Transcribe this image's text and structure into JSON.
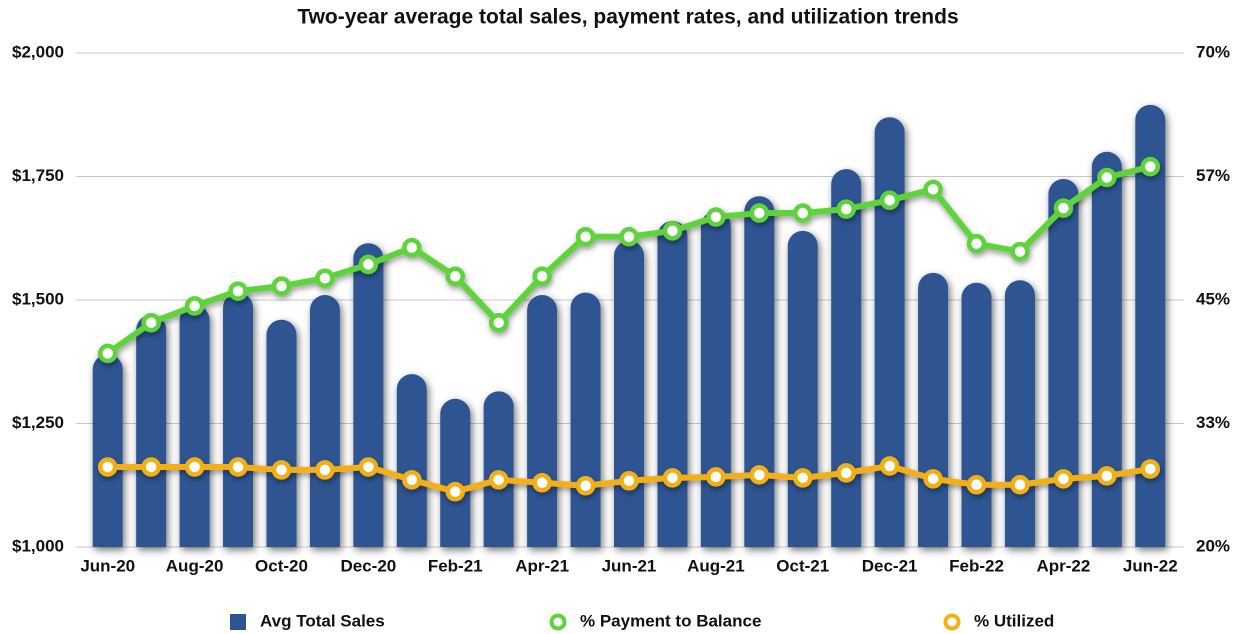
{
  "chart_data": {
    "type": "bar-line",
    "title": "Two-year average total sales, payment rates, and utilization trends",
    "categories": [
      "Jun-20",
      null,
      "Aug-20",
      null,
      "Oct-20",
      null,
      "Dec-20",
      null,
      "Feb-21",
      null,
      "Apr-21",
      null,
      "Jun-21",
      null,
      "Aug-21",
      null,
      "Oct-21",
      null,
      "Dec-21",
      null,
      "Feb-22",
      null,
      "Apr-22",
      null,
      "Jun-22"
    ],
    "series": [
      {
        "name": "Avg Total Sales",
        "type": "bar",
        "color": "#2e5592",
        "axis": "y",
        "values": [
          1390,
          1470,
          1490,
          1515,
          1460,
          1510,
          1615,
          1350,
          1300,
          1315,
          1510,
          1515,
          1620,
          1660,
          1680,
          1710,
          1640,
          1765,
          1870,
          1555,
          1535,
          1540,
          1745,
          1800,
          1895
        ]
      },
      {
        "name": "% Payment to Balance",
        "type": "line",
        "color": "#5fd33a",
        "axis": "y2",
        "values": [
          39.6,
          42.7,
          44.4,
          45.9,
          46.4,
          47.2,
          48.6,
          50.3,
          47.4,
          42.7,
          47.4,
          51.4,
          51.4,
          52.0,
          53.4,
          53.8,
          53.8,
          54.2,
          55.1,
          56.2,
          50.7,
          49.9,
          54.3,
          57.4,
          58.5
        ]
      },
      {
        "name": "% Utilized",
        "type": "line",
        "color": "#f2b019",
        "axis": "y2",
        "values": [
          28.1,
          28.1,
          28.1,
          28.1,
          27.8,
          27.8,
          28.1,
          26.8,
          25.6,
          26.8,
          26.5,
          26.2,
          26.7,
          27.0,
          27.1,
          27.3,
          27.0,
          27.5,
          28.2,
          26.9,
          26.3,
          26.3,
          26.9,
          27.2,
          27.9
        ]
      }
    ],
    "ylim": [
      1000,
      2000
    ],
    "yticks": [
      {
        "value": 1000,
        "label": "$1,000"
      },
      {
        "value": 1250,
        "label": "$1,250"
      },
      {
        "value": 1500,
        "label": "$1,500"
      },
      {
        "value": 1750,
        "label": "$1,750"
      },
      {
        "value": 2000,
        "label": "$2,000"
      }
    ],
    "y2lim": [
      20,
      70
    ],
    "y2ticks": [
      {
        "value": 20,
        "label": "20%"
      },
      {
        "value": 32.5,
        "label": "33%"
      },
      {
        "value": 45,
        "label": "45%"
      },
      {
        "value": 57.49,
        "label": "57%"
      },
      {
        "value": 70,
        "label": "70%"
      }
    ],
    "grid": true,
    "legend": "bottom"
  }
}
